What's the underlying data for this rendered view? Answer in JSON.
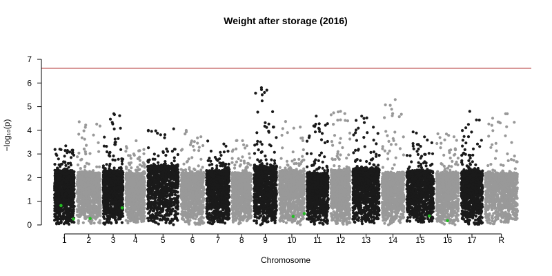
{
  "chart_data": {
    "type": "scatter",
    "title": "Weight after storage (2016)",
    "xlabel": "Chromosome",
    "ylabel": "−log₁₀(p)",
    "ylim": [
      0,
      7
    ],
    "yticks": [
      0,
      1,
      2,
      3,
      4,
      5,
      6,
      7
    ],
    "grid": false,
    "significance_threshold": 6.62,
    "colors": {
      "dark": "#1a1a1a",
      "light": "#999999",
      "highlight": "#22bb22",
      "threshold": "#b03030"
    },
    "chromosomes": [
      {
        "label": "1",
        "base": 2.3,
        "peak": 3.5
      },
      {
        "label": "2",
        "base": 2.2,
        "peak": 4.5
      },
      {
        "label": "3",
        "base": 2.3,
        "peak": 4.7
      },
      {
        "label": "4",
        "base": 2.2,
        "peak": 3.6
      },
      {
        "label": "5",
        "base": 2.5,
        "peak": 4.3
      },
      {
        "label": "6",
        "base": 2.2,
        "peak": 4.1
      },
      {
        "label": "7",
        "base": 2.3,
        "peak": 3.9
      },
      {
        "label": "8",
        "base": 2.2,
        "peak": 3.6
      },
      {
        "label": "9",
        "base": 2.5,
        "peak": 5.8
      },
      {
        "label": "10",
        "base": 2.3,
        "peak": 4.4
      },
      {
        "label": "11",
        "base": 2.2,
        "peak": 4.6
      },
      {
        "label": "12",
        "base": 2.3,
        "peak": 4.8
      },
      {
        "label": "13",
        "base": 2.4,
        "peak": 4.6
      },
      {
        "label": "14",
        "base": 2.2,
        "peak": 5.3
      },
      {
        "label": "15",
        "base": 2.3,
        "peak": 4.1
      },
      {
        "label": "16",
        "base": 2.2,
        "peak": 3.9
      },
      {
        "label": "17",
        "base": 2.3,
        "peak": 4.8
      },
      {
        "label": "R",
        "base": 2.2,
        "peak": 4.7
      }
    ],
    "notable_points": [
      {
        "chr": "9",
        "y": 5.8
      },
      {
        "chr": "9",
        "y": 5.7
      },
      {
        "chr": "9",
        "y": 5.6
      },
      {
        "chr": "9",
        "y": 5.5
      },
      {
        "chr": "14",
        "y": 5.3
      },
      {
        "chr": "12",
        "y": 4.8
      },
      {
        "chr": "17",
        "y": 4.8
      },
      {
        "chr": "R",
        "y": 4.7
      },
      {
        "chr": "3",
        "y": 4.7
      },
      {
        "chr": "11",
        "y": 4.6
      },
      {
        "chr": "13",
        "y": 4.6
      }
    ],
    "highlighted_points": [
      {
        "chr": "1",
        "y": 0.25
      },
      {
        "chr": "1",
        "y": 0.82
      },
      {
        "chr": "2",
        "y": 0.27
      },
      {
        "chr": "3",
        "y": 0.72
      },
      {
        "chr": "10",
        "y": 0.36
      },
      {
        "chr": "10",
        "y": 0.48
      },
      {
        "chr": "15",
        "y": 0.38
      },
      {
        "chr": "16",
        "y": 0.18
      }
    ]
  }
}
